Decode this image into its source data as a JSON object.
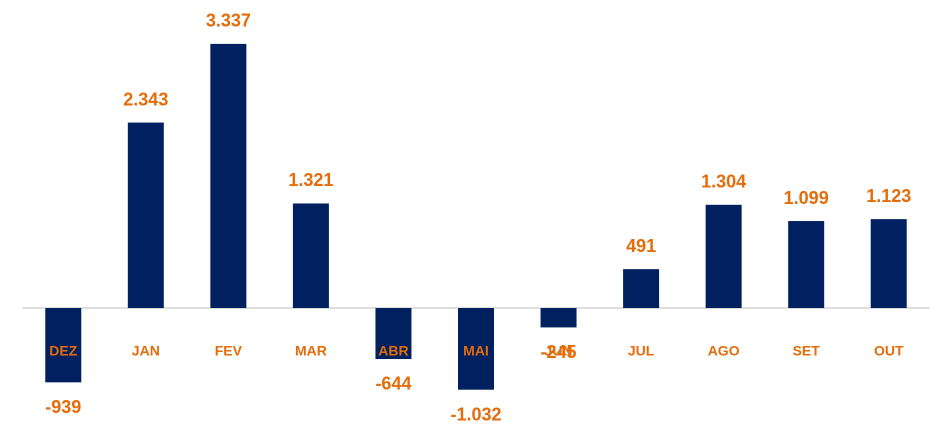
{
  "chart_data": {
    "type": "bar",
    "categories": [
      "DEZ",
      "JAN",
      "FEV",
      "MAR",
      "ABR",
      "MAI",
      "JUN",
      "JUL",
      "AGO",
      "SET",
      "OUT"
    ],
    "values": [
      -939,
      2343,
      3337,
      1321,
      -644,
      -1032,
      -245,
      491,
      1304,
      1099,
      1123
    ],
    "value_labels": [
      "-939",
      "2.343",
      "3.337",
      "1.321",
      "-644",
      "-1.032",
      "-245",
      "491",
      "1.304",
      "1.099",
      "1.123"
    ],
    "color": "#002060",
    "label_color": "#e46c0a",
    "ylim": [
      -1200,
      3500
    ]
  }
}
